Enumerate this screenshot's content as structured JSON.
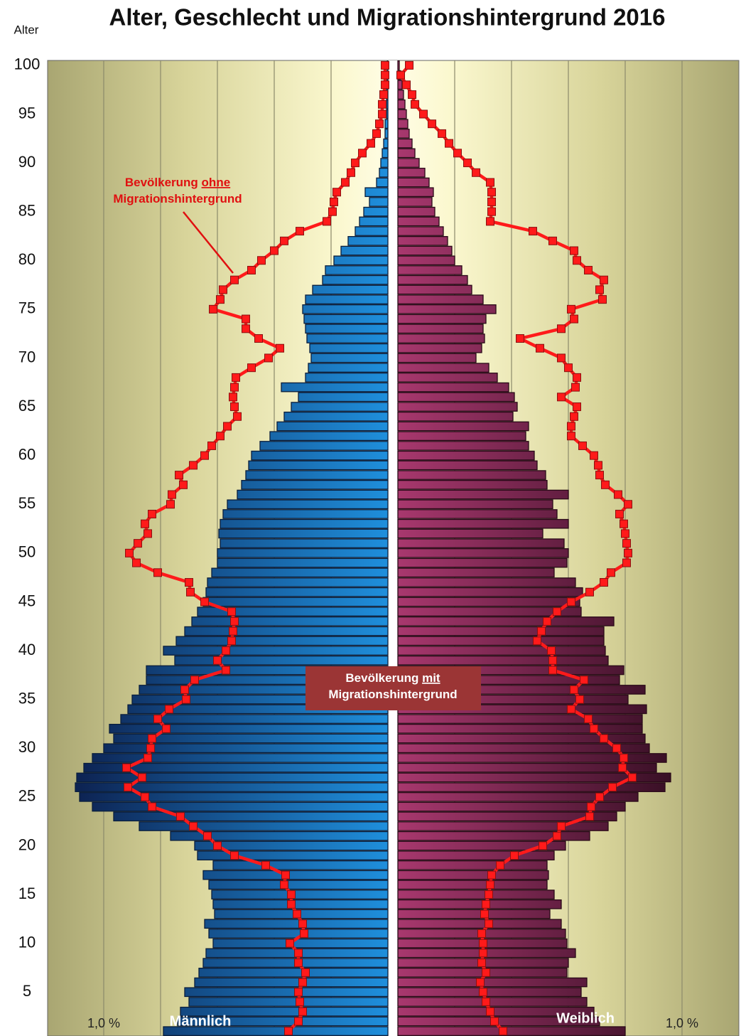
{
  "chart_data": {
    "type": "pyramid",
    "title": "Alter, Geschlecht und Migrationshintergrund 2016",
    "y_label": "Alter",
    "y": [
      1,
      2,
      3,
      4,
      5,
      6,
      7,
      8,
      9,
      10,
      11,
      12,
      13,
      14,
      15,
      16,
      17,
      18,
      19,
      20,
      21,
      22,
      23,
      24,
      25,
      26,
      27,
      28,
      29,
      30,
      31,
      32,
      33,
      34,
      35,
      36,
      37,
      38,
      39,
      40,
      41,
      42,
      43,
      44,
      45,
      46,
      47,
      48,
      49,
      50,
      51,
      52,
      53,
      54,
      55,
      56,
      57,
      58,
      59,
      60,
      61,
      62,
      63,
      64,
      65,
      66,
      67,
      68,
      69,
      70,
      71,
      72,
      73,
      74,
      75,
      76,
      77,
      78,
      79,
      80,
      81,
      82,
      83,
      84,
      85,
      86,
      87,
      88,
      89,
      90,
      91,
      92,
      93,
      94,
      95,
      96,
      97,
      98,
      99,
      100
    ],
    "ylim": [
      0.5,
      100.5
    ],
    "yticks": [
      5,
      10,
      15,
      20,
      25,
      30,
      35,
      40,
      45,
      50,
      55,
      60,
      65,
      70,
      75,
      80,
      85,
      90,
      95,
      100
    ],
    "xlim": [
      0,
      1.2
    ],
    "xgrid": [
      0.2,
      0.4,
      0.6,
      0.8,
      1.0
    ],
    "xticks": [
      {
        "value": 1.0,
        "label": "1,0 %"
      }
    ],
    "grid": true,
    "series": [
      {
        "name": "Männlich",
        "mark": "bar",
        "side": "left",
        "colors": [
          "#0d2454",
          "#1f8fdc"
        ],
        "border": "#0a1e3c",
        "values": [
          0.79,
          0.74,
          0.73,
          0.7,
          0.715,
          0.68,
          0.665,
          0.65,
          0.64,
          0.615,
          0.63,
          0.645,
          0.61,
          0.615,
          0.62,
          0.63,
          0.65,
          0.615,
          0.67,
          0.68,
          0.765,
          0.875,
          0.965,
          1.04,
          1.085,
          1.1,
          1.095,
          1.07,
          1.04,
          1.0,
          0.965,
          0.98,
          0.94,
          0.915,
          0.9,
          0.875,
          0.85,
          0.85,
          0.75,
          0.79,
          0.745,
          0.715,
          0.69,
          0.67,
          0.65,
          0.64,
          0.635,
          0.62,
          0.6,
          0.6,
          0.59,
          0.595,
          0.59,
          0.58,
          0.565,
          0.53,
          0.515,
          0.5,
          0.49,
          0.48,
          0.45,
          0.415,
          0.39,
          0.365,
          0.34,
          0.315,
          0.375,
          0.29,
          0.28,
          0.27,
          0.275,
          0.285,
          0.29,
          0.295,
          0.3,
          0.29,
          0.265,
          0.23,
          0.22,
          0.19,
          0.165,
          0.14,
          0.115,
          0.1,
          0.085,
          0.065,
          0.08,
          0.04,
          0.03,
          0.025,
          0.02,
          0.015,
          0.01,
          0.01,
          0.005,
          0.005,
          0.005,
          0.005,
          0.005,
          0.002
        ]
      },
      {
        "name": "Weiblich",
        "mark": "bar",
        "side": "right",
        "colors": [
          "#a8386e",
          "#2a0a1c"
        ],
        "border": "#2a0a18",
        "values": [
          0.8,
          0.71,
          0.69,
          0.665,
          0.645,
          0.665,
          0.595,
          0.6,
          0.625,
          0.595,
          0.59,
          0.575,
          0.535,
          0.575,
          0.55,
          0.525,
          0.53,
          0.525,
          0.55,
          0.59,
          0.675,
          0.74,
          0.77,
          0.8,
          0.845,
          0.94,
          0.96,
          0.91,
          0.945,
          0.885,
          0.87,
          0.86,
          0.86,
          0.875,
          0.81,
          0.87,
          0.78,
          0.795,
          0.74,
          0.73,
          0.725,
          0.725,
          0.76,
          0.645,
          0.64,
          0.65,
          0.625,
          0.55,
          0.595,
          0.6,
          0.585,
          0.51,
          0.6,
          0.56,
          0.545,
          0.6,
          0.525,
          0.52,
          0.49,
          0.48,
          0.46,
          0.45,
          0.46,
          0.405,
          0.42,
          0.41,
          0.39,
          0.35,
          0.32,
          0.275,
          0.295,
          0.305,
          0.3,
          0.31,
          0.345,
          0.3,
          0.26,
          0.245,
          0.225,
          0.2,
          0.19,
          0.175,
          0.16,
          0.145,
          0.13,
          0.12,
          0.125,
          0.11,
          0.095,
          0.075,
          0.06,
          0.05,
          0.04,
          0.035,
          0.03,
          0.025,
          0.02,
          0.015,
          0.01,
          0.005
        ]
      },
      {
        "mark": "line",
        "side": "left",
        "color": "#ff1a1a",
        "border": "#8a1010",
        "values": [
          0.35,
          0.315,
          0.3,
          0.31,
          0.315,
          0.3,
          0.29,
          0.315,
          0.315,
          0.345,
          0.295,
          0.3,
          0.32,
          0.34,
          0.34,
          0.365,
          0.36,
          0.43,
          0.54,
          0.6,
          0.635,
          0.685,
          0.73,
          0.83,
          0.855,
          0.915,
          0.865,
          0.92,
          0.845,
          0.835,
          0.83,
          0.78,
          0.81,
          0.77,
          0.71,
          0.715,
          0.68,
          0.57,
          0.6,
          0.57,
          0.55,
          0.545,
          0.54,
          0.55,
          0.645,
          0.695,
          0.7,
          0.81,
          0.885,
          0.91,
          0.88,
          0.845,
          0.855,
          0.83,
          0.765,
          0.76,
          0.72,
          0.735,
          0.685,
          0.645,
          0.62,
          0.59,
          0.565,
          0.53,
          0.54,
          0.545,
          0.54,
          0.535,
          0.48,
          0.42,
          0.38,
          0.455,
          0.5,
          0.5,
          0.615,
          0.59,
          0.58,
          0.54,
          0.48,
          0.445,
          0.4,
          0.365,
          0.31,
          0.215,
          0.195,
          0.19,
          0.18,
          0.15,
          0.13,
          0.115,
          0.09,
          0.06,
          0.04,
          0.03,
          0.02,
          0.02,
          0.015,
          0.01,
          0.01,
          0.01
        ]
      },
      {
        "mark": "line",
        "side": "right",
        "color": "#ff1a1a",
        "border": "#8a1010",
        "values": [
          0.37,
          0.34,
          0.325,
          0.31,
          0.3,
          0.29,
          0.31,
          0.295,
          0.3,
          0.3,
          0.295,
          0.32,
          0.305,
          0.31,
          0.32,
          0.325,
          0.33,
          0.36,
          0.41,
          0.51,
          0.56,
          0.575,
          0.675,
          0.68,
          0.71,
          0.755,
          0.825,
          0.79,
          0.795,
          0.77,
          0.725,
          0.69,
          0.67,
          0.61,
          0.64,
          0.62,
          0.655,
          0.545,
          0.545,
          0.54,
          0.49,
          0.505,
          0.525,
          0.56,
          0.61,
          0.675,
          0.725,
          0.75,
          0.805,
          0.81,
          0.805,
          0.8,
          0.795,
          0.78,
          0.81,
          0.775,
          0.73,
          0.71,
          0.705,
          0.69,
          0.65,
          0.61,
          0.61,
          0.62,
          0.63,
          0.575,
          0.625,
          0.63,
          0.6,
          0.575,
          0.5,
          0.43,
          0.575,
          0.62,
          0.61,
          0.72,
          0.71,
          0.725,
          0.67,
          0.63,
          0.62,
          0.545,
          0.475,
          0.325,
          0.33,
          0.33,
          0.33,
          0.325,
          0.275,
          0.245,
          0.21,
          0.18,
          0.155,
          0.12,
          0.09,
          0.06,
          0.05,
          0.03,
          0.01,
          0.04
        ]
      }
    ],
    "annotations": {
      "without": {
        "lines": [
          [
            "Bevölkerung ",
            "ohne"
          ],
          [
            "Migrationshintergrund"
          ]
        ],
        "color": "#e01010"
      },
      "with": {
        "lines": [
          [
            "Bevölkerung ",
            "mit"
          ],
          [
            "Migrationshintergrund"
          ]
        ],
        "color": "#9b3535"
      }
    }
  }
}
